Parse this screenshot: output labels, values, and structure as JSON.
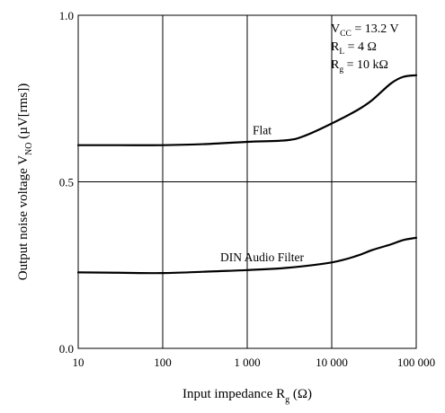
{
  "chart_data": {
    "type": "line",
    "xscale": "log",
    "xlim": [
      10,
      100000
    ],
    "ylim": [
      0.0,
      1.0
    ],
    "grid": true,
    "x_tick_values": [
      10,
      100,
      1000,
      10000,
      100000
    ],
    "x_tick_labels": [
      "10",
      "100",
      "1 000",
      "10 000",
      "100 000"
    ],
    "y_tick_values": [
      0.0,
      0.5,
      1.0
    ],
    "y_tick_labels": [
      "0.0",
      "0.5",
      "1.0"
    ],
    "xlabel": {
      "main": "Input impedance  R",
      "sub": "g",
      "unit": "  (Ω)"
    },
    "ylabel": {
      "main": "Output noise voltage  V",
      "sub": "NO",
      "unit": "  (µV[rms])"
    },
    "conditions": [
      {
        "main": "V",
        "sub": "CC",
        "rest": " = 13.2 V"
      },
      {
        "main": "R",
        "sub": "L",
        "rest": " = 4 Ω"
      },
      {
        "main": "R",
        "sub": "g",
        "rest": " = 10 kΩ"
      }
    ],
    "series": [
      {
        "name": "Flat",
        "x": [
          10,
          30,
          100,
          300,
          1000,
          3000,
          5000,
          10000,
          20000,
          30000,
          50000,
          70000,
          100000
        ],
        "y": [
          0.61,
          0.61,
          0.61,
          0.613,
          0.62,
          0.625,
          0.64,
          0.675,
          0.715,
          0.745,
          0.795,
          0.815,
          0.82
        ]
      },
      {
        "name": "DIN Audio Filter",
        "x": [
          10,
          30,
          100,
          300,
          1000,
          3000,
          10000,
          20000,
          30000,
          50000,
          70000,
          100000
        ],
        "y": [
          0.228,
          0.227,
          0.226,
          0.23,
          0.235,
          0.242,
          0.258,
          0.278,
          0.295,
          0.312,
          0.325,
          0.332
        ]
      }
    ]
  }
}
